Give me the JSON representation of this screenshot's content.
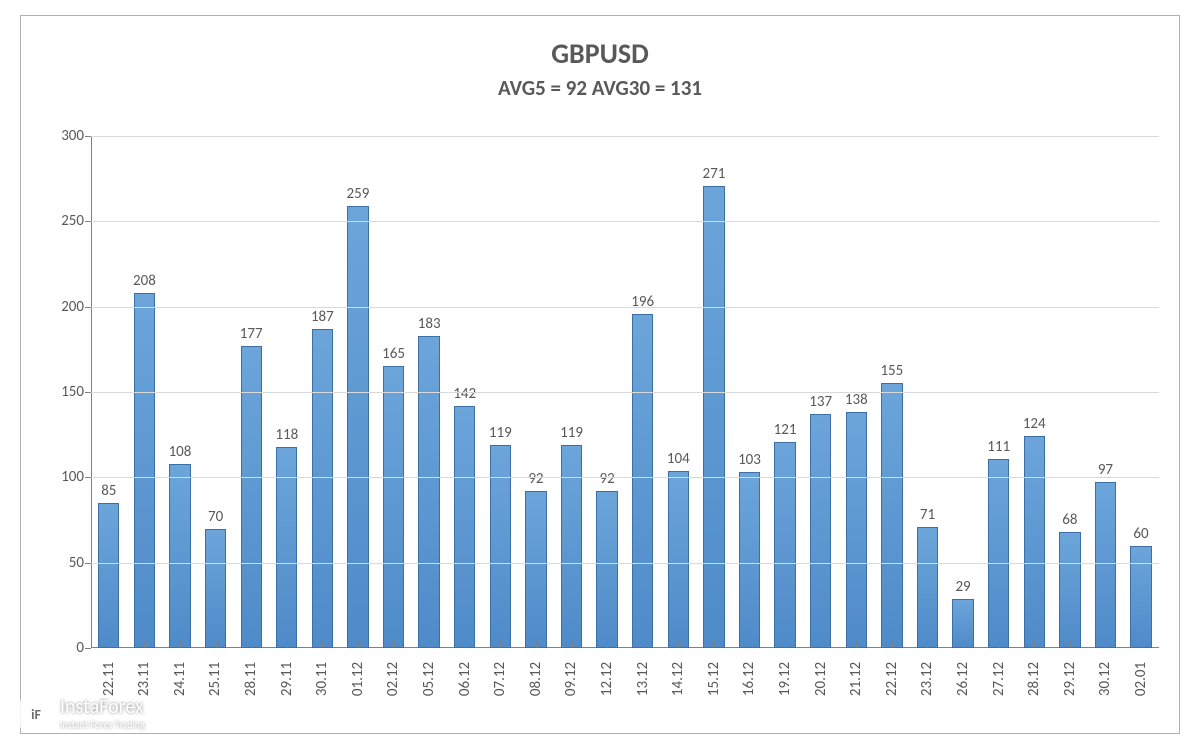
{
  "chart": {
    "type": "bar",
    "title": "GBPUSD",
    "subtitle": "AVG5 = 92 AVG30 = 131",
    "title_fontsize": 28,
    "subtitle_fontsize": 21,
    "title_color": "#595959",
    "background_color": "#ffffff",
    "border_color": "#b0b0b0",
    "grid_color": "#d9d9d9",
    "axis_color": "#808080",
    "bar_color": "#5b9bd5",
    "bar_border_color": "#3b6fa5",
    "label_color": "#595959",
    "label_fontsize": 15,
    "ylim": [
      0,
      300
    ],
    "ytick_step": 50,
    "yticks": [
      0,
      50,
      100,
      150,
      200,
      250,
      300
    ],
    "categories": [
      "22.11",
      "23.11",
      "24.11",
      "25.11",
      "28.11",
      "29.11",
      "30.11",
      "01.12",
      "02.12",
      "05.12",
      "06.12",
      "07.12",
      "08.12",
      "09.12",
      "12.12",
      "13.12",
      "14.12",
      "15.12",
      "16.12",
      "19.12",
      "20.12",
      "21.12",
      "22.12",
      "23.12",
      "26.12",
      "27.12",
      "28.12",
      "29.12",
      "30.12",
      "02.01"
    ],
    "values": [
      85,
      208,
      108,
      70,
      177,
      118,
      187,
      259,
      165,
      183,
      142,
      119,
      92,
      119,
      92,
      196,
      104,
      271,
      103,
      121,
      137,
      138,
      155,
      71,
      29,
      111,
      124,
      68,
      97,
      60
    ],
    "bar_width": 0.6
  },
  "watermark": {
    "brand": "InstaForex",
    "tagline": "Instant Forex Trading",
    "icon_text": "iF"
  }
}
